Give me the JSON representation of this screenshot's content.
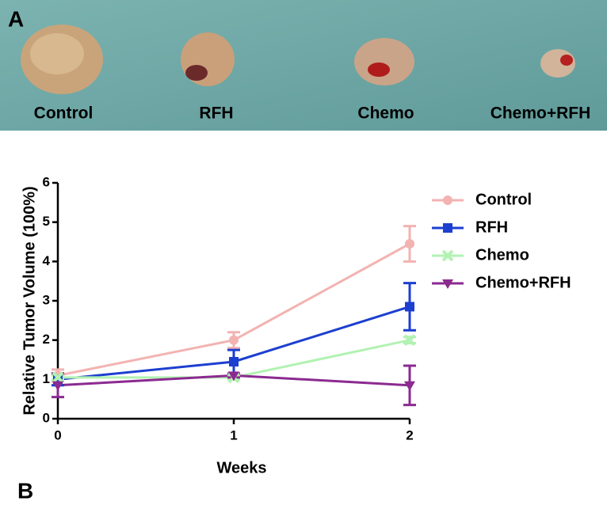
{
  "panel_labels": [
    "A",
    "B"
  ],
  "photo": {
    "labels": [
      "Control",
      "RFH",
      "Chemo",
      "Chemo+RFH"
    ]
  },
  "chart_data": {
    "type": "line",
    "x_label": "Weeks",
    "y_label": "Relative Tumor Volume (100%)",
    "x": [
      0,
      1,
      2
    ],
    "xlim": [
      0,
      2
    ],
    "xticks": [
      0,
      1,
      2
    ],
    "ylim": [
      0,
      6
    ],
    "yticks": [
      0,
      1,
      2,
      3,
      4,
      5,
      6
    ],
    "legend": "right",
    "series": [
      {
        "name": "Control",
        "color": "#f2b3b1",
        "marker": "circle",
        "values": [
          1.1,
          2.0,
          4.45
        ],
        "errors": [
          0.15,
          0.2,
          0.45
        ]
      },
      {
        "name": "RFH",
        "color": "#1c3fd0",
        "marker": "square",
        "values": [
          1.0,
          1.45,
          2.85
        ],
        "errors": [
          0.15,
          0.3,
          0.6
        ]
      },
      {
        "name": "Chemo",
        "color": "#b2f2b2",
        "marker": "x",
        "values": [
          1.05,
          1.05,
          2.0
        ],
        "errors": [
          0.05,
          0.05,
          0.08
        ]
      },
      {
        "name": "Chemo+RFH",
        "color": "#8b2a90",
        "marker": "triangle-down",
        "values": [
          0.85,
          1.1,
          0.85
        ],
        "errors": [
          0.3,
          0.05,
          0.5
        ]
      }
    ]
  }
}
